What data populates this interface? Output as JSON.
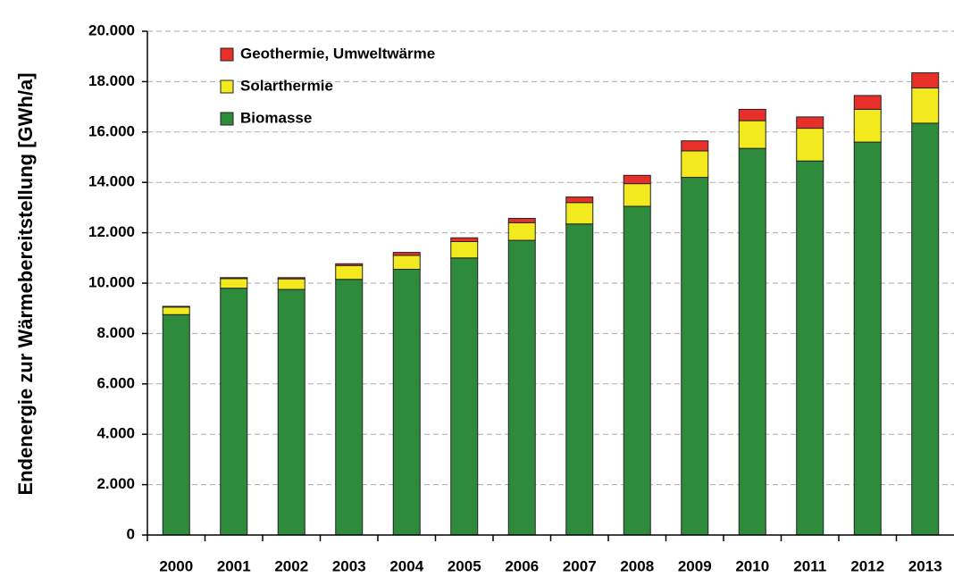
{
  "chart_data": {
    "type": "stacked_bar",
    "y_label": "Endenergie zur Wärmebereitstellung [GWh/a]",
    "categories": [
      "2000",
      "2001",
      "2002",
      "2003",
      "2004",
      "2005",
      "2006",
      "2007",
      "2008",
      "2009",
      "2010",
      "2011",
      "2012",
      "2013"
    ],
    "series": [
      {
        "name": "Biomasse",
        "color": "#2e8b3c",
        "values": [
          8750,
          9800,
          9750,
          10150,
          10550,
          11000,
          11700,
          12350,
          13050,
          14200,
          15350,
          14850,
          15600,
          16350
        ]
      },
      {
        "name": "Solarthermie",
        "color": "#f2ea1e",
        "values": [
          300,
          380,
          420,
          550,
          550,
          650,
          700,
          850,
          900,
          1050,
          1100,
          1300,
          1300,
          1400
        ]
      },
      {
        "name": "Geothermie, Umweltwärme",
        "color": "#e8302a",
        "values": [
          30,
          40,
          50,
          70,
          120,
          150,
          170,
          220,
          330,
          400,
          450,
          450,
          550,
          600
        ]
      }
    ],
    "ylim": [
      0,
      20000
    ],
    "yticks": [
      0,
      {
        "value": 2000,
        "label": "2.000"
      },
      {
        "value": 4000,
        "label": "4.000"
      },
      {
        "value": 6000,
        "label": "6.000"
      },
      {
        "value": 8000,
        "label": "8.000"
      },
      {
        "value": 10000,
        "label": "10.000"
      },
      {
        "value": 12000,
        "label": "12.000"
      },
      {
        "value": 14000,
        "label": "14.000"
      },
      {
        "value": 16000,
        "label": "16.000"
      },
      {
        "value": 18000,
        "label": "18.000"
      },
      {
        "value": 20000,
        "label": "20.000"
      }
    ],
    "grid": true,
    "legend": "top-left"
  }
}
